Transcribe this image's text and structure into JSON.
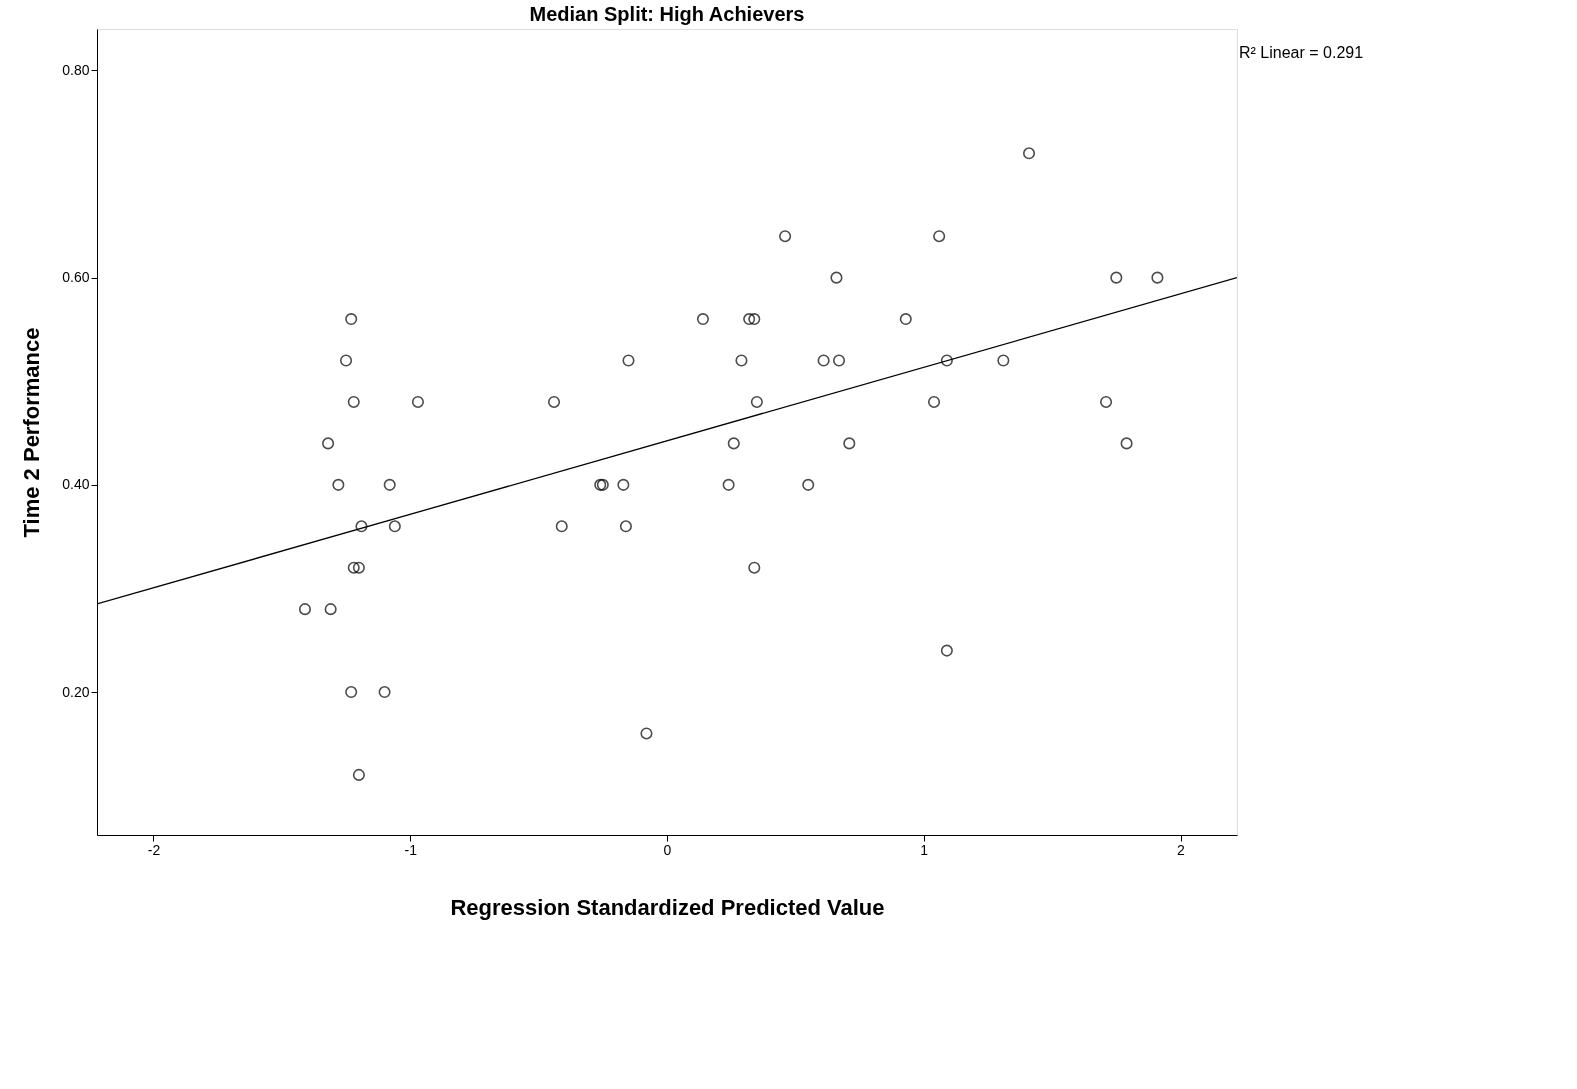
{
  "chart_data": {
    "type": "scatter",
    "title": "Median Split: High Achievers",
    "xlabel": "Regression Standardized Predicted Value",
    "ylabel": "Time 2 Performance",
    "annotations": [
      "R² Linear = 0.291"
    ],
    "marker": "circle",
    "grid": false,
    "xlim": [
      -2.22,
      2.22
    ],
    "ylim": [
      0.062,
      0.84
    ],
    "xticks": [
      -2,
      -1,
      0,
      1,
      2
    ],
    "yticks": [
      {
        "value": 0.2,
        "label": "0.20"
      },
      {
        "value": 0.4,
        "label": "0.40"
      },
      {
        "value": 0.6,
        "label": "0.60"
      },
      {
        "value": 0.8,
        "label": "0.80"
      }
    ],
    "series": [
      {
        "color": "#000000",
        "x": [
          1.41,
          0.46,
          1.06,
          0.66,
          1.75,
          1.91,
          -1.23,
          0.14,
          0.32,
          0.34,
          0.93,
          -1.25,
          -0.15,
          0.29,
          0.61,
          0.67,
          1.09,
          1.31,
          -1.22,
          -0.97,
          -0.44,
          0.35,
          1.04,
          1.71,
          -1.32,
          0.26,
          0.71,
          1.79,
          -1.28,
          -1.08,
          -0.26,
          -0.25,
          -0.17,
          0.24,
          0.55,
          -1.19,
          -1.06,
          -0.41,
          -0.16,
          -1.22,
          -1.2,
          0.34,
          -1.41,
          -1.31,
          1.09,
          -1.23,
          -1.1,
          -0.08,
          -1.2
        ],
        "values": [
          0.72,
          0.64,
          0.64,
          0.6,
          0.6,
          0.6,
          0.56,
          0.56,
          0.56,
          0.56,
          0.56,
          0.52,
          0.52,
          0.52,
          0.52,
          0.52,
          0.52,
          0.52,
          0.48,
          0.48,
          0.48,
          0.48,
          0.48,
          0.48,
          0.44,
          0.44,
          0.44,
          0.44,
          0.4,
          0.4,
          0.4,
          0.4,
          0.4,
          0.4,
          0.4,
          0.36,
          0.36,
          0.36,
          0.36,
          0.32,
          0.32,
          0.32,
          0.28,
          0.28,
          0.24,
          0.2,
          0.2,
          0.16,
          0.12
        ]
      },
      {
        "type": "line",
        "marker": "none",
        "color": "#000000",
        "line_style": "solid",
        "x": [
          -2.22,
          2.22
        ],
        "values": [
          0.285,
          0.6
        ]
      }
    ]
  }
}
